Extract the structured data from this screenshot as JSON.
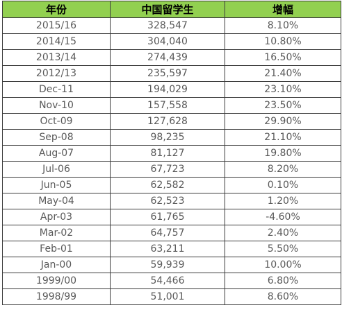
{
  "table": {
    "header_color": "#92d050",
    "columns": [
      "年份",
      "中国留学生",
      "增幅"
    ],
    "rows": [
      [
        "2015/16",
        "328,547",
        "8.10%"
      ],
      [
        "2014/15",
        "304,040",
        "10.80%"
      ],
      [
        "2013/14",
        "274,439",
        "16.50%"
      ],
      [
        "2012/13",
        "235,597",
        "21.40%"
      ],
      [
        "Dec-11",
        "194,029",
        "23.10%"
      ],
      [
        "Nov-10",
        "157,558",
        "23.50%"
      ],
      [
        "Oct-09",
        "127,628",
        "29.90%"
      ],
      [
        "Sep-08",
        "98,235",
        "21.10%"
      ],
      [
        "Aug-07",
        "81,127",
        "19.80%"
      ],
      [
        "Jul-06",
        "67,723",
        "8.20%"
      ],
      [
        "Jun-05",
        "62,582",
        "0.10%"
      ],
      [
        "May-04",
        "62,523",
        "1.20%"
      ],
      [
        "Apr-03",
        "61,765",
        "-4.60%"
      ],
      [
        "Mar-02",
        "64,757",
        "2.40%"
      ],
      [
        "Feb-01",
        "63,211",
        "5.50%"
      ],
      [
        "Jan-00",
        "59,939",
        "10.00%"
      ],
      [
        "1999/00",
        "54,466",
        "6.80%"
      ],
      [
        "1998/99",
        "51,001",
        "8.60%"
      ]
    ]
  }
}
